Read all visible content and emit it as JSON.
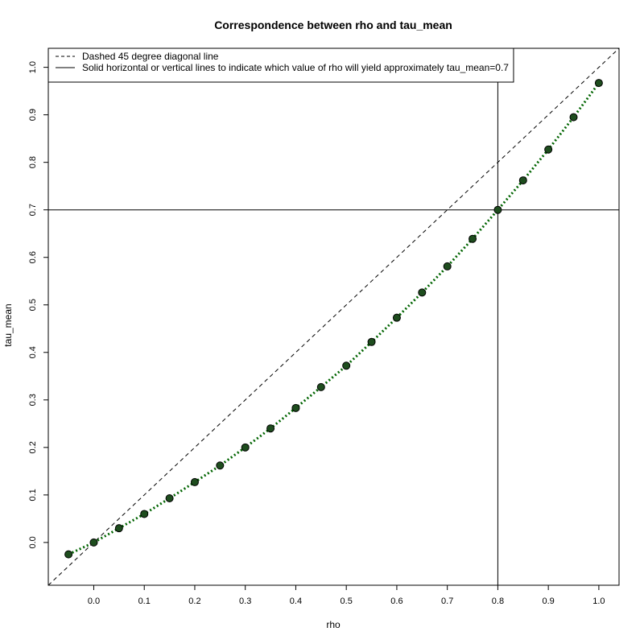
{
  "chart_data": {
    "type": "scatter",
    "title": "Correspondence between rho and tau_mean",
    "xlabel": "rho",
    "ylabel": "tau_mean",
    "xlim": [
      -0.09,
      1.04
    ],
    "ylim": [
      -0.09,
      1.04
    ],
    "xticks": [
      0.0,
      0.1,
      0.2,
      0.3,
      0.4,
      0.5,
      0.6,
      0.7,
      0.8,
      0.9,
      1.0
    ],
    "xtick_labels": [
      "0.0",
      "0.1",
      "0.2",
      "0.3",
      "0.4",
      "0.5",
      "0.6",
      "0.7",
      "0.8",
      "0.9",
      "1.0"
    ],
    "yticks": [
      0.0,
      0.1,
      0.2,
      0.3,
      0.4,
      0.5,
      0.6,
      0.7,
      0.8,
      0.9,
      1.0
    ],
    "ytick_labels": [
      "0.0",
      "0.1",
      "0.2",
      "0.3",
      "0.4",
      "0.5",
      "0.6",
      "0.7",
      "0.8",
      "0.9",
      "1.0"
    ],
    "series": [
      {
        "style": "points connected by dotted line",
        "color": "#006400",
        "point_fill": "#1e4d1e",
        "x": [
          -0.05,
          0.0,
          0.05,
          0.1,
          0.15,
          0.2,
          0.25,
          0.3,
          0.35,
          0.4,
          0.45,
          0.5,
          0.55,
          0.6,
          0.65,
          0.7,
          0.75,
          0.8,
          0.85,
          0.9,
          0.95,
          1.0
        ],
        "y": [
          -0.025,
          0.0,
          0.03,
          0.06,
          0.093,
          0.127,
          0.162,
          0.2,
          0.24,
          0.283,
          0.327,
          0.372,
          0.422,
          0.473,
          0.526,
          0.581,
          0.639,
          0.7,
          0.762,
          0.827,
          0.895,
          0.967
        ]
      }
    ],
    "reference_lines": {
      "diagonal": {
        "style": "dashed",
        "slope": 1,
        "intercept": 0,
        "color": "#000000"
      },
      "horizontal": {
        "y": 0.7,
        "style": "solid",
        "color": "#000000"
      },
      "vertical": {
        "x": 0.8,
        "style": "solid",
        "color": "#000000"
      }
    },
    "legend": {
      "position": "top-left",
      "entries": [
        {
          "label": "Dashed 45 degree diagonal line",
          "style": "dashed"
        },
        {
          "label": "Solid horizontal or vertical lines to indicate which value of rho will yield approximately tau_mean=0.7",
          "style": "solid"
        }
      ]
    },
    "grid": false
  }
}
